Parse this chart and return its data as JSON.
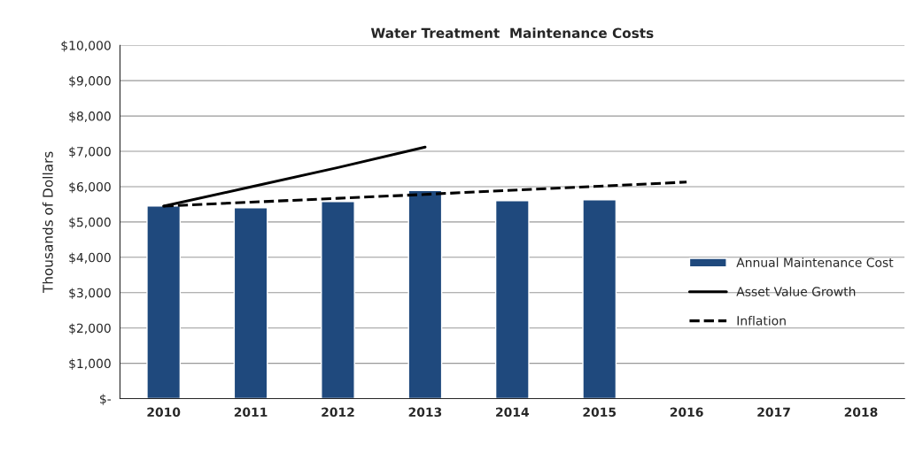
{
  "chart_data": {
    "type": "bar",
    "title": "Water Treatment  Maintenance Costs",
    "ylabel": "Thousands of Dollars",
    "categories": [
      "2010",
      "2011",
      "2012",
      "2013",
      "2014",
      "2015",
      "2016",
      "2017",
      "2018"
    ],
    "series": [
      {
        "name": "Annual Maintenance Cost",
        "color": "#1f497d",
        "values": [
          5450,
          5400,
          5580,
          5890,
          5600,
          5630,
          null,
          null,
          null
        ]
      },
      {
        "name": "Asset Value Growth",
        "type": "line",
        "color": "#000000",
        "line_style": "solid",
        "values": [
          5450,
          5990,
          6540,
          7120,
          null,
          null,
          null,
          null,
          null
        ]
      },
      {
        "name": "Inflation",
        "type": "line",
        "color": "#000000",
        "line_style": "dashed",
        "values": [
          5450,
          5560,
          5670,
          5780,
          5900,
          6010,
          6130,
          null,
          null
        ]
      }
    ],
    "ylim": [
      0,
      10000
    ],
    "yticks": [
      {
        "value": 0,
        "label": "$-"
      },
      {
        "value": 1000,
        "label": "$1,000"
      },
      {
        "value": 2000,
        "label": "$2,000"
      },
      {
        "value": 3000,
        "label": "$3,000"
      },
      {
        "value": 4000,
        "label": "$4,000"
      },
      {
        "value": 5000,
        "label": "$5,000"
      },
      {
        "value": 6000,
        "label": "$6,000"
      },
      {
        "value": 7000,
        "label": "$7,000"
      },
      {
        "value": 8000,
        "label": "$8,000"
      },
      {
        "value": 9000,
        "label": "$9,000"
      },
      {
        "value": 10000,
        "label": "$10,000"
      }
    ],
    "grid": "y",
    "legend": "right"
  }
}
